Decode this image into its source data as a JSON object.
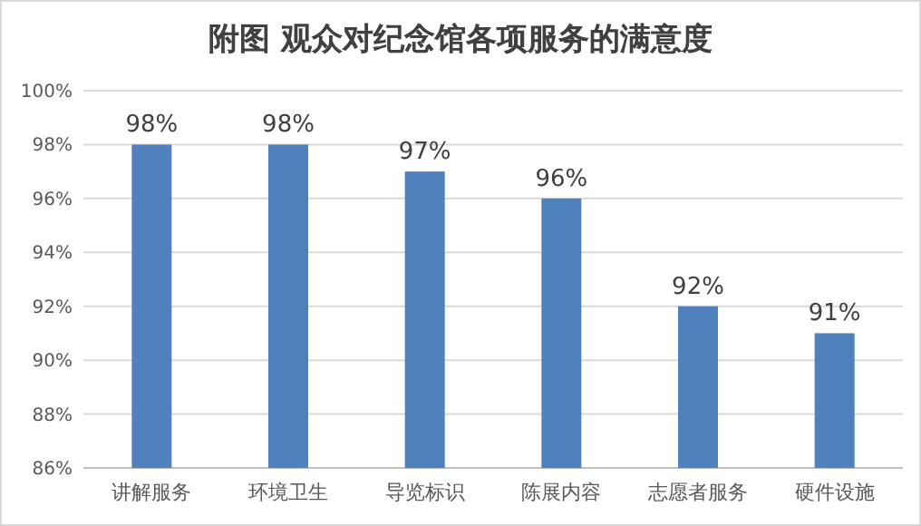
{
  "chart_data": {
    "type": "bar",
    "title": "附图 观众对纪念馆各项服务的满意度",
    "categories": [
      "讲解服务",
      "环境卫生",
      "导览标识",
      "陈展内容",
      "志愿者服务",
      "硬件设施"
    ],
    "values": [
      98,
      98,
      97,
      96,
      92,
      91
    ],
    "value_labels": [
      "98%",
      "98%",
      "97%",
      "96%",
      "92%",
      "91%"
    ],
    "color": "#4f81bd",
    "ylim": [
      86,
      100
    ],
    "yticks": [
      {
        "value": 86,
        "label": "86%"
      },
      {
        "value": 88,
        "label": "88%"
      },
      {
        "value": 90,
        "label": "90%"
      },
      {
        "value": 92,
        "label": "92%"
      },
      {
        "value": 94,
        "label": "94%"
      },
      {
        "value": 96,
        "label": "96%"
      },
      {
        "value": 98,
        "label": "98%"
      },
      {
        "value": 100,
        "label": "100%"
      }
    ],
    "grid": "y"
  }
}
